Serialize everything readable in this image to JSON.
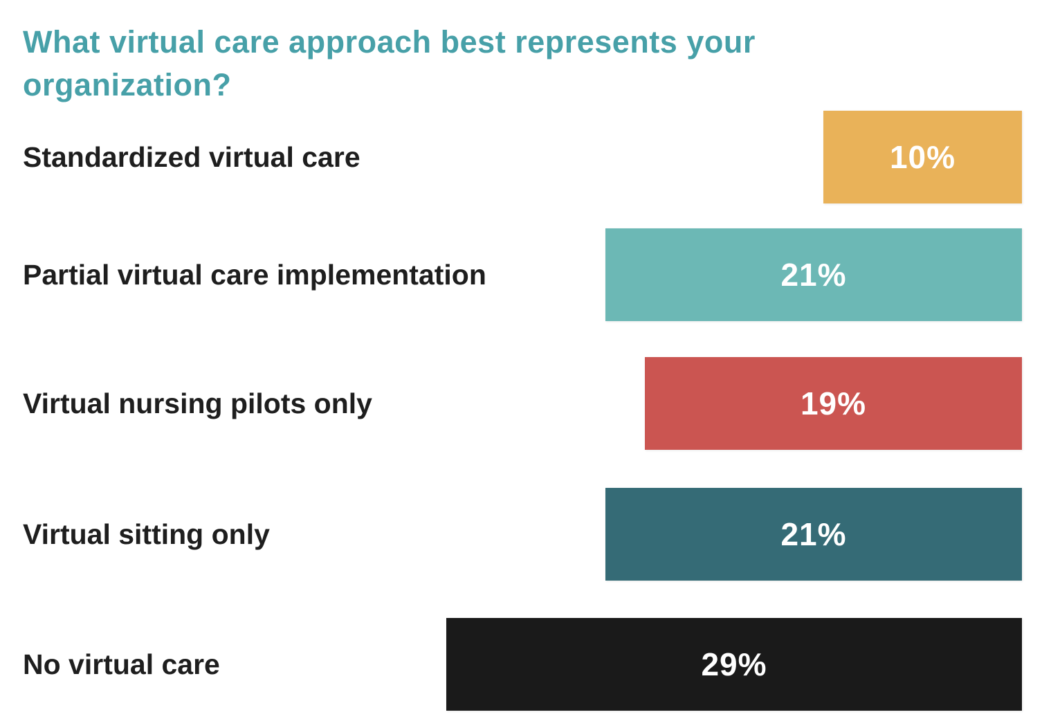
{
  "title": "What virtual care approach best represents your organization?",
  "title_color": "#47a0a8",
  "chart_data": {
    "type": "bar",
    "orientation": "horizontal",
    "title": "What virtual care approach best represents your organization?",
    "categories": [
      "Standardized virtual care",
      "Partial virtual care implementation",
      "Virtual nursing pilots only",
      "Virtual sitting only",
      "No virtual care"
    ],
    "values": [
      10,
      21,
      19,
      21,
      29
    ],
    "unit": "%",
    "xlim": [
      0,
      29
    ],
    "grid": false,
    "legend": "none",
    "value_labels_position": "inside-center",
    "value_label_color": "#ffffff",
    "rows": [
      {
        "label": "Standardized virtual care",
        "value": 10,
        "value_label": "10%",
        "color": "#e9b259"
      },
      {
        "label": "Partial virtual care implementation",
        "value": 21,
        "value_label": "21%",
        "color": "#6cb8b5"
      },
      {
        "label": "Virtual nursing pilots only",
        "value": 19,
        "value_label": "19%",
        "color": "#cb5551"
      },
      {
        "label": "Virtual sitting only",
        "value": 21,
        "value_label": "21%",
        "color": "#356b76"
      },
      {
        "label": "No virtual care",
        "value": 29,
        "value_label": "29%",
        "color": "#1a1a1a"
      }
    ]
  }
}
